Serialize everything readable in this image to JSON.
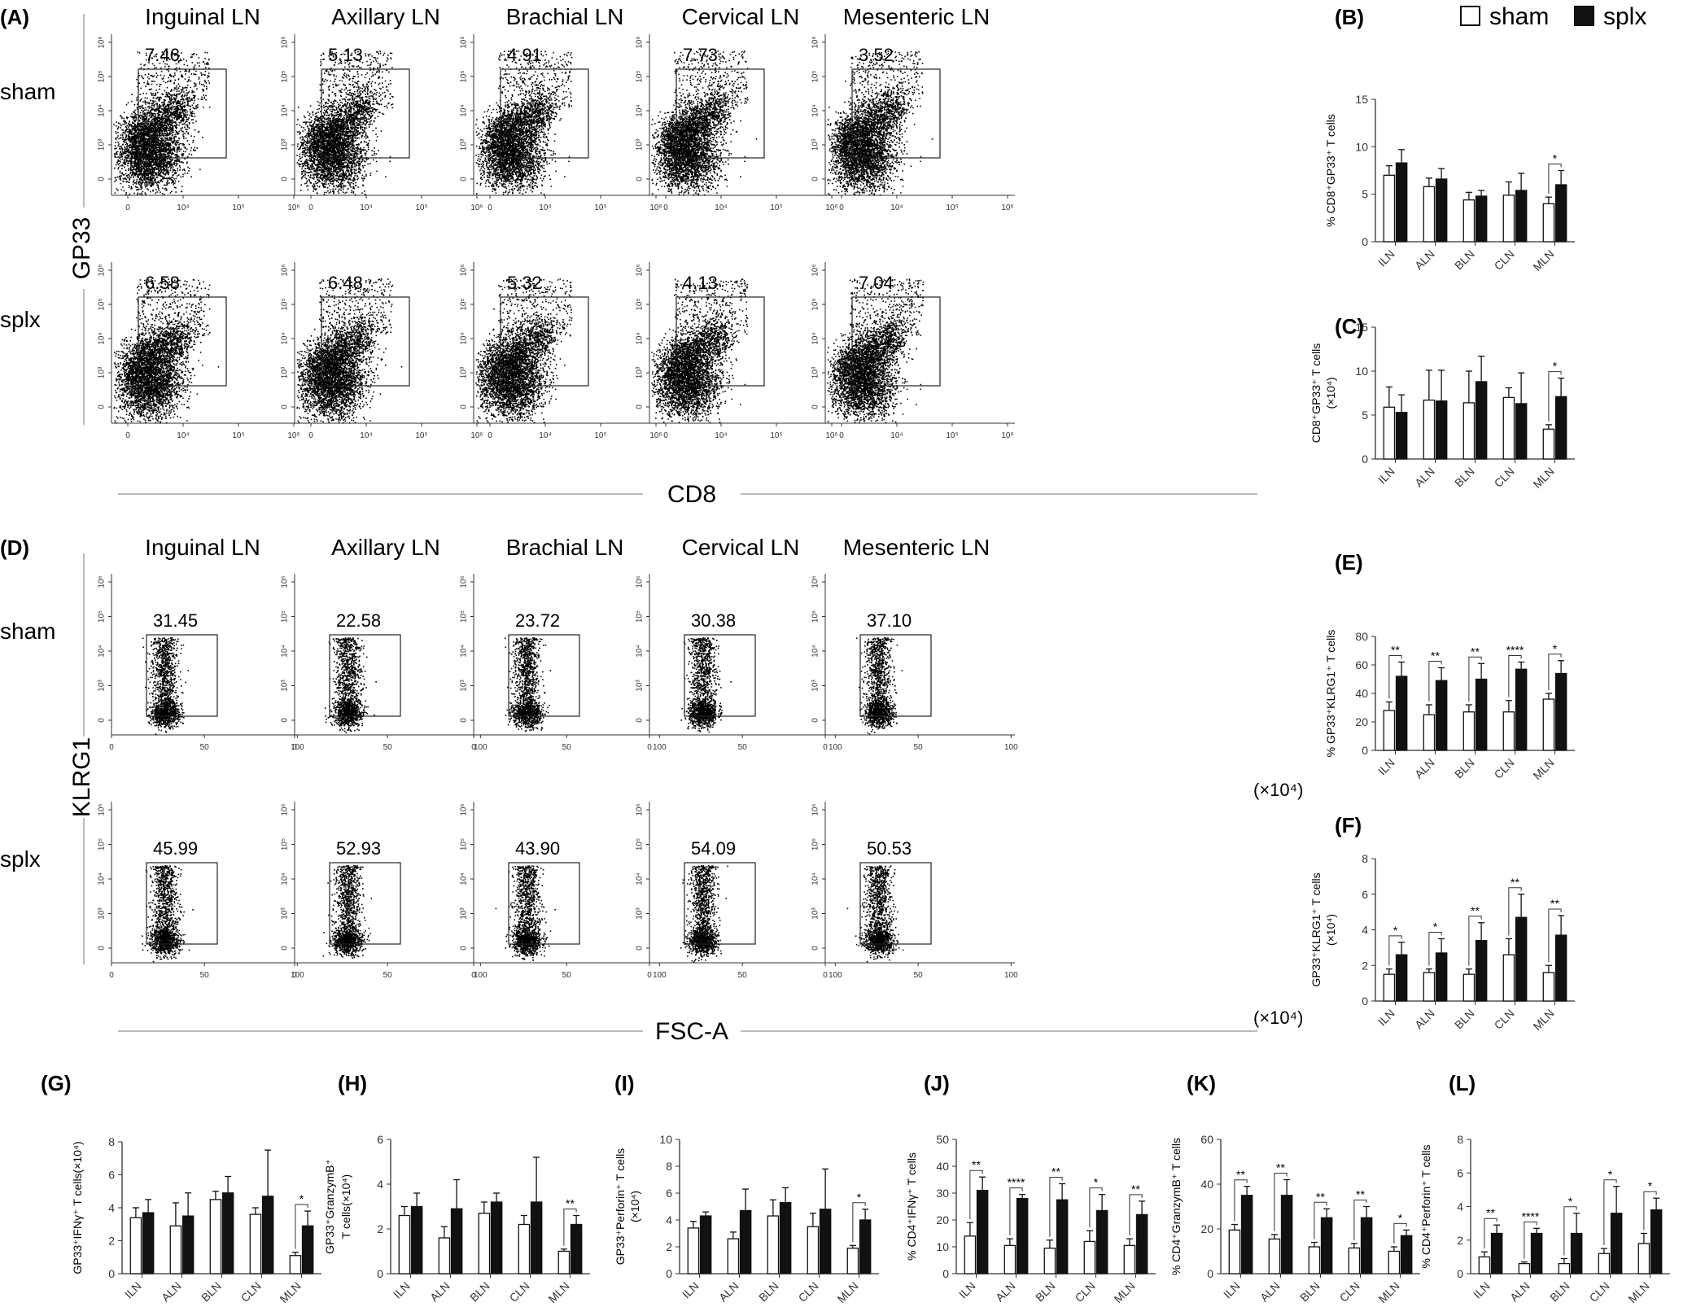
{
  "legend": {
    "sham": "sham",
    "splx": "splx"
  },
  "groups": [
    "sham",
    "splx"
  ],
  "tissues": [
    "Inguinal LN",
    "Axillary LN",
    "Brachial LN",
    "Cervical LN",
    "Mesenteric LN"
  ],
  "categories": [
    "ILN",
    "ALN",
    "BLN",
    "CLN",
    "MLN"
  ],
  "flow_A": {
    "letter": "(A)",
    "xlabel": "CD8",
    "ylabel": "GP33",
    "xticks": [
      "0",
      "10⁴",
      "10⁵",
      "10⁶"
    ],
    "yticks": [
      "0",
      "10³",
      "10⁴",
      "10⁵",
      "10⁶"
    ],
    "gates": {
      "sham": [
        "7.46",
        "5.13",
        "4.91",
        "7.73",
        "3.52"
      ],
      "splx": [
        "6.58",
        "6.48",
        "5.32",
        "4.13",
        "7.04"
      ]
    }
  },
  "flow_D": {
    "letter": "(D)",
    "xlabel": "FSC-A",
    "ylabel": "KLRG1",
    "xunit": "(×10⁴)",
    "xticks": [
      "0",
      "50",
      "100"
    ],
    "yticks": [
      "0",
      "10³",
      "10⁴",
      "10⁵",
      "10⁶"
    ],
    "gates": {
      "sham": [
        "31.45",
        "22.58",
        "23.72",
        "30.38",
        "37.10"
      ],
      "splx": [
        "45.99",
        "52.93",
        "43.90",
        "54.09",
        "50.53"
      ]
    }
  },
  "chart_data": [
    {
      "id": "B",
      "letter": "(B)",
      "type": "bar",
      "ylabel": "% CD8⁺GP33⁺ T cells",
      "ylim": [
        0,
        15
      ],
      "yticks": [
        0,
        5,
        10,
        15
      ],
      "categories": [
        "ILN",
        "ALN",
        "BLN",
        "CLN",
        "MLN"
      ],
      "series": [
        {
          "name": "sham",
          "values": [
            7,
            5.8,
            4.4,
            4.9,
            4.0
          ],
          "errors": [
            1,
            0.9,
            0.8,
            1.4,
            0.7
          ]
        },
        {
          "name": "splx",
          "values": [
            8.3,
            6.6,
            4.8,
            5.4,
            6.0
          ],
          "errors": [
            1.4,
            1.1,
            0.6,
            1.8,
            1.5
          ]
        }
      ],
      "sig": [
        {
          "index": 4,
          "label": "*"
        }
      ]
    },
    {
      "id": "C",
      "letter": "(C)",
      "type": "bar",
      "ylabel": "CD8⁺GP33⁺ T cells",
      "yunit": "(×10⁴)",
      "ylim": [
        0,
        15
      ],
      "yticks": [
        0,
        5,
        10,
        15
      ],
      "categories": [
        "ILN",
        "ALN",
        "BLN",
        "CLN",
        "MLN"
      ],
      "series": [
        {
          "name": "sham",
          "values": [
            5.9,
            6.7,
            6.4,
            7.0,
            3.4
          ],
          "errors": [
            2.3,
            3.4,
            3.6,
            1.1,
            0.5
          ]
        },
        {
          "name": "splx",
          "values": [
            5.3,
            6.6,
            8.8,
            6.3,
            7.1
          ],
          "errors": [
            2.0,
            3.5,
            2.9,
            3.5,
            2.1
          ]
        }
      ],
      "sig": [
        {
          "index": 4,
          "label": "*"
        }
      ]
    },
    {
      "id": "E",
      "letter": "(E)",
      "type": "bar",
      "ylabel": "% GP33⁺KLRG1⁺ T cells",
      "ylim": [
        0,
        80
      ],
      "yticks": [
        0,
        20,
        40,
        60,
        80
      ],
      "categories": [
        "ILN",
        "ALN",
        "BLN",
        "CLN",
        "MLN"
      ],
      "series": [
        {
          "name": "sham",
          "values": [
            28,
            25,
            27,
            27,
            36
          ],
          "errors": [
            6,
            7,
            5,
            8,
            4
          ]
        },
        {
          "name": "splx",
          "values": [
            52,
            49,
            50,
            57,
            54
          ],
          "errors": [
            10,
            9,
            11,
            5,
            9
          ]
        }
      ],
      "sig": [
        {
          "index": 0,
          "label": "**"
        },
        {
          "index": 1,
          "label": "**"
        },
        {
          "index": 2,
          "label": "**"
        },
        {
          "index": 3,
          "label": "****"
        },
        {
          "index": 4,
          "label": "*"
        }
      ]
    },
    {
      "id": "F",
      "letter": "(F)",
      "type": "bar",
      "ylabel": "GP33⁺KLRG1⁺ T cells",
      "yunit": "(×10⁴)",
      "ylim": [
        0,
        8
      ],
      "yticks": [
        0,
        2,
        4,
        6,
        8
      ],
      "categories": [
        "ILN",
        "ALN",
        "BLN",
        "CLN",
        "MLN"
      ],
      "series": [
        {
          "name": "sham",
          "values": [
            1.5,
            1.6,
            1.5,
            2.6,
            1.6
          ],
          "errors": [
            0.3,
            0.2,
            0.3,
            0.9,
            0.4
          ]
        },
        {
          "name": "splx",
          "values": [
            2.6,
            2.7,
            3.4,
            4.7,
            3.7
          ],
          "errors": [
            0.7,
            0.8,
            1.0,
            1.3,
            1.1
          ]
        }
      ],
      "sig": [
        {
          "index": 0,
          "label": "*"
        },
        {
          "index": 1,
          "label": "*"
        },
        {
          "index": 2,
          "label": "**"
        },
        {
          "index": 3,
          "label": "**"
        },
        {
          "index": 4,
          "label": "**"
        }
      ]
    },
    {
      "id": "G",
      "letter": "(G)",
      "type": "bar",
      "ylabel": "GP33⁺IFNγ⁺ T cells(×10⁴)",
      "ylim": [
        0,
        8
      ],
      "yticks": [
        0,
        2,
        4,
        6,
        8
      ],
      "categories": [
        "ILN",
        "ALN",
        "BLN",
        "CLN",
        "MLN"
      ],
      "series": [
        {
          "name": "sham",
          "values": [
            3.4,
            2.9,
            4.5,
            3.6,
            1.1
          ],
          "errors": [
            0.6,
            1.4,
            0.5,
            0.4,
            0.2
          ]
        },
        {
          "name": "splx",
          "values": [
            3.7,
            3.5,
            4.9,
            4.7,
            2.9
          ],
          "errors": [
            0.8,
            1.4,
            1.0,
            2.8,
            0.9
          ]
        }
      ],
      "sig": [
        {
          "index": 4,
          "label": "*"
        }
      ]
    },
    {
      "id": "H",
      "letter": "(H)",
      "type": "bar",
      "ylabel": "GP33⁺GranzymB⁺",
      "ylabel2": "T cells(×10⁴)",
      "ylim": [
        0,
        6
      ],
      "yticks": [
        0,
        2,
        4,
        6
      ],
      "categories": [
        "ILN",
        "ALN",
        "BLN",
        "CLN",
        "MLN"
      ],
      "series": [
        {
          "name": "sham",
          "values": [
            2.6,
            1.6,
            2.7,
            2.2,
            1.0
          ],
          "errors": [
            0.4,
            0.5,
            0.5,
            0.4,
            0.1
          ]
        },
        {
          "name": "splx",
          "values": [
            3.0,
            2.9,
            3.2,
            3.2,
            2.2
          ],
          "errors": [
            0.6,
            1.3,
            0.4,
            2.0,
            0.4
          ]
        }
      ],
      "sig": [
        {
          "index": 4,
          "label": "**"
        }
      ]
    },
    {
      "id": "I",
      "letter": "(I)",
      "type": "bar",
      "ylabel": "GP33⁺Perforin⁺ T cells",
      "yunit": "(×10⁴)",
      "ylim": [
        0,
        10
      ],
      "yticks": [
        0,
        2,
        4,
        6,
        8,
        10
      ],
      "categories": [
        "ILN",
        "ALN",
        "BLN",
        "CLN",
        "MLN"
      ],
      "series": [
        {
          "name": "sham",
          "values": [
            3.4,
            2.6,
            4.3,
            3.5,
            1.9
          ],
          "errors": [
            0.5,
            0.5,
            1.2,
            1.0,
            0.2
          ]
        },
        {
          "name": "splx",
          "values": [
            4.3,
            4.7,
            5.3,
            4.8,
            4.0
          ],
          "errors": [
            0.3,
            1.6,
            1.1,
            3.0,
            0.8
          ]
        }
      ],
      "sig": [
        {
          "index": 4,
          "label": "*"
        }
      ]
    },
    {
      "id": "J",
      "letter": "(J)",
      "type": "bar",
      "ylabel": "% CD4⁺IFNγ⁺ T cells",
      "ylim": [
        0,
        50
      ],
      "yticks": [
        0,
        10,
        20,
        30,
        40,
        50
      ],
      "categories": [
        "ILN",
        "ALN",
        "BLN",
        "CLN",
        "MLN"
      ],
      "series": [
        {
          "name": "sham",
          "values": [
            14,
            10.5,
            9.5,
            12,
            10.5
          ],
          "errors": [
            5,
            2.5,
            3,
            4,
            2.5
          ]
        },
        {
          "name": "splx",
          "values": [
            31,
            28,
            27.5,
            23.5,
            22
          ],
          "errors": [
            5,
            1.5,
            6,
            6,
            5
          ]
        }
      ],
      "sig": [
        {
          "index": 0,
          "label": "**"
        },
        {
          "index": 1,
          "label": "****"
        },
        {
          "index": 2,
          "label": "**"
        },
        {
          "index": 3,
          "label": "*"
        },
        {
          "index": 4,
          "label": "**"
        }
      ]
    },
    {
      "id": "K",
      "letter": "(K)",
      "type": "bar",
      "ylabel": "% CD4⁺GranzymB⁺ T cells",
      "ylim": [
        0,
        60
      ],
      "yticks": [
        0,
        20,
        40,
        60
      ],
      "categories": [
        "ILN",
        "ALN",
        "BLN",
        "CLN",
        "MLN"
      ],
      "series": [
        {
          "name": "sham",
          "values": [
            19.5,
            15.5,
            12,
            11.5,
            10
          ],
          "errors": [
            2.5,
            2,
            2,
            2,
            2
          ]
        },
        {
          "name": "splx",
          "values": [
            35,
            35,
            25,
            25,
            17
          ],
          "errors": [
            4,
            7,
            4,
            5,
            2.5
          ]
        }
      ],
      "sig": [
        {
          "index": 0,
          "label": "**"
        },
        {
          "index": 1,
          "label": "**"
        },
        {
          "index": 2,
          "label": "**"
        },
        {
          "index": 3,
          "label": "**"
        },
        {
          "index": 4,
          "label": "*"
        }
      ]
    },
    {
      "id": "L",
      "letter": "(L)",
      "type": "bar",
      "ylabel": "% CD4⁺Perforin⁺ T cells",
      "ylim": [
        0,
        8
      ],
      "yticks": [
        0,
        2,
        4,
        6,
        8
      ],
      "categories": [
        "ILN",
        "ALN",
        "BLN",
        "CLN",
        "MLN"
      ],
      "series": [
        {
          "name": "sham",
          "values": [
            1,
            0.6,
            0.6,
            1.2,
            1.8
          ],
          "errors": [
            0.3,
            0.1,
            0.3,
            0.3,
            0.6
          ]
        },
        {
          "name": "splx",
          "values": [
            2.4,
            2.4,
            2.4,
            3.6,
            3.8
          ],
          "errors": [
            0.5,
            0.3,
            1.2,
            1.6,
            0.7
          ]
        }
      ],
      "sig": [
        {
          "index": 0,
          "label": "**"
        },
        {
          "index": 1,
          "label": "****"
        },
        {
          "index": 2,
          "label": "*"
        },
        {
          "index": 3,
          "label": "*"
        },
        {
          "index": 4,
          "label": "*"
        }
      ]
    }
  ]
}
